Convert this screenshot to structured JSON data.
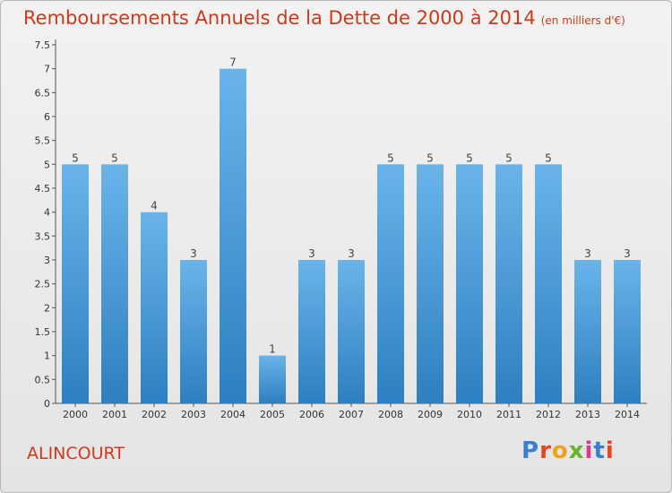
{
  "header": {
    "title": "Remboursements Annuels de la Dette de 2000 à 2014",
    "unit": "(en milliers d'€)"
  },
  "footer": {
    "commune": "ALINCOURT",
    "logo_text": "Proxiti"
  },
  "chart_data": {
    "type": "bar",
    "title": "Remboursements Annuels de la Dette de 2000 à 2014",
    "subtitle": "(en milliers d'€)",
    "categories": [
      "2000",
      "2001",
      "2002",
      "2003",
      "2004",
      "2005",
      "2006",
      "2007",
      "2008",
      "2009",
      "2010",
      "2011",
      "2012",
      "2013",
      "2014"
    ],
    "values": [
      5,
      5,
      4,
      3,
      7,
      1,
      3,
      3,
      5,
      5,
      5,
      5,
      5,
      3,
      3
    ],
    "yticks": [
      "0",
      "0.5",
      "1",
      "1.5",
      "2",
      "2.5",
      "3",
      "3.5",
      "4",
      "4.5",
      "5",
      "5.5",
      "6",
      "6.5",
      "7",
      "7.5"
    ],
    "ylim": [
      0,
      7.5
    ],
    "grid": false,
    "colors": {
      "bar_light": "#6ab4ea",
      "bar_dark": "#2e7fc0",
      "title": "#d03a1c"
    }
  }
}
